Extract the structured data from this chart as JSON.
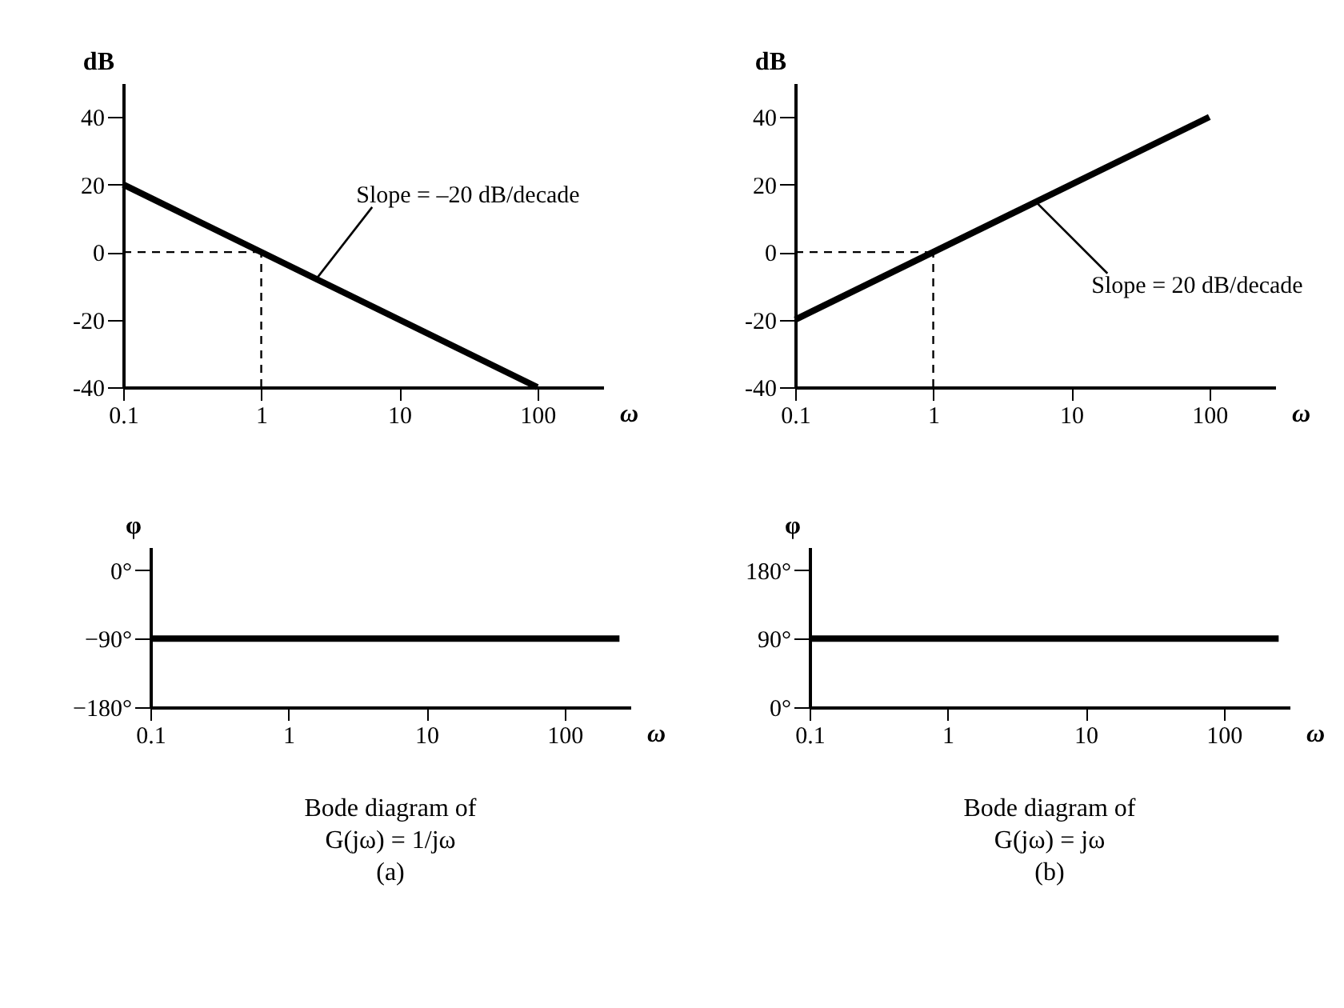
{
  "chart_data": [
    {
      "type": "line",
      "ylabel": "dB",
      "xlabel": "ω",
      "log": "x",
      "grid": false,
      "marker": "none",
      "line_style": "solid",
      "xlim": [
        0.1,
        300
      ],
      "xticks": [
        0.1,
        1,
        10,
        100
      ],
      "ylim": [
        -40,
        50
      ],
      "yticks": [
        -40,
        -20,
        0,
        20,
        40
      ],
      "series": [
        {
          "color": "#000000",
          "x": [
            0.1,
            100
          ],
          "values": [
            20,
            -40
          ]
        }
      ],
      "ref_lines": [
        {
          "axis": "x",
          "value": 1,
          "line_style": "dashed"
        },
        {
          "axis": "y",
          "value": 0,
          "line_style": "dashed"
        }
      ],
      "annotations": [
        {
          "text": "Slope = –20 dB/decade",
          "x": 2.5,
          "y": -8
        }
      ]
    },
    {
      "type": "line",
      "ylabel": "dB",
      "xlabel": "ω",
      "log": "x",
      "grid": false,
      "marker": "none",
      "line_style": "solid",
      "xlim": [
        0.1,
        300
      ],
      "xticks": [
        0.1,
        1,
        10,
        100
      ],
      "ylim": [
        -40,
        50
      ],
      "yticks": [
        -40,
        -20,
        0,
        20,
        40
      ],
      "series": [
        {
          "color": "#000000",
          "x": [
            0.1,
            100
          ],
          "values": [
            -20,
            40
          ]
        }
      ],
      "ref_lines": [
        {
          "axis": "x",
          "value": 1,
          "line_style": "dashed"
        },
        {
          "axis": "y",
          "value": 0,
          "line_style": "dashed"
        }
      ],
      "annotations": [
        {
          "text": "Slope = 20 dB/decade",
          "x": 5.5,
          "y": 15
        }
      ]
    },
    {
      "type": "line",
      "ylabel": "φ",
      "xlabel": "ω",
      "log": "x",
      "grid": false,
      "marker": "none",
      "line_style": "solid",
      "xlim": [
        0.1,
        300
      ],
      "xticks": [
        0.1,
        1,
        10,
        100
      ],
      "ylim": [
        -180,
        30
      ],
      "yticks": [
        {
          "value": -180,
          "label": "−180°"
        },
        {
          "value": -90,
          "label": "−90°"
        },
        {
          "value": 0,
          "label": "0°"
        }
      ],
      "series": [
        {
          "color": "#000000",
          "x": [
            0.1,
            250
          ],
          "values": [
            -90,
            -90
          ]
        }
      ],
      "annotations": [
        "Bode diagram of",
        "G(jω) = 1/jω",
        "(a)"
      ]
    },
    {
      "type": "line",
      "ylabel": "φ",
      "xlabel": "ω",
      "log": "x",
      "grid": false,
      "marker": "none",
      "line_style": "solid",
      "xlim": [
        0.1,
        300
      ],
      "xticks": [
        0.1,
        1,
        10,
        100
      ],
      "ylim": [
        0,
        210
      ],
      "yticks": [
        {
          "value": 0,
          "label": "0°"
        },
        {
          "value": 90,
          "label": "90°"
        },
        {
          "value": 180,
          "label": "180°"
        }
      ],
      "series": [
        {
          "color": "#000000",
          "x": [
            0.1,
            250
          ],
          "values": [
            90,
            90
          ]
        }
      ],
      "annotations": [
        "Bode diagram of",
        "G(jω) = jω",
        "(b)"
      ]
    }
  ]
}
